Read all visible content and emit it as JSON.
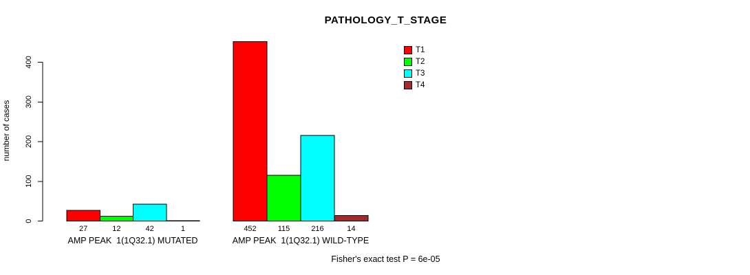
{
  "title": "PATHOLOGY_T_STAGE",
  "y_axis": {
    "label": "number of cases",
    "ticks": [
      0,
      100,
      200,
      300,
      400
    ]
  },
  "legend": {
    "items": [
      {
        "label": "T1",
        "color": "#FF0000"
      },
      {
        "label": "T2",
        "color": "#00FF00"
      },
      {
        "label": "T3",
        "color": "#00FFFF"
      },
      {
        "label": "T4",
        "color": "#A52A2A"
      }
    ]
  },
  "footer": "Fisher's exact test P = 6e-05",
  "chart_data": {
    "type": "bar",
    "title": "PATHOLOGY_T_STAGE",
    "xlabel": "",
    "ylabel": "number of cases",
    "ylim": [
      0,
      460
    ],
    "yticks": [
      0,
      100,
      200,
      300,
      400
    ],
    "grid": false,
    "legend_position": "top-right",
    "series": [
      {
        "name": "T1",
        "color": "#FF0000"
      },
      {
        "name": "T2",
        "color": "#00FF00"
      },
      {
        "name": "T3",
        "color": "#00FFFF"
      },
      {
        "name": "T4",
        "color": "#A52A2A"
      }
    ],
    "groups": [
      {
        "label": "AMP PEAK  1(1Q32.1) MUTATED",
        "values": [
          27,
          12,
          42,
          1
        ]
      },
      {
        "label": "AMP PEAK  1(1Q32.1) WILD-TYPE",
        "values": [
          452,
          115,
          216,
          14
        ]
      }
    ],
    "bar_value_labels": [
      [
        27,
        12,
        42,
        1
      ],
      [
        452,
        115,
        216,
        14
      ]
    ],
    "annotation": "Fisher's exact test P = 6e-05"
  }
}
